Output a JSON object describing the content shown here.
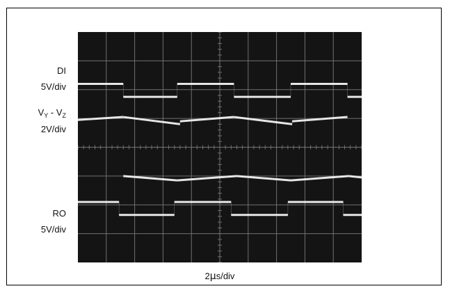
{
  "chart_data": {
    "type": "line",
    "title": "",
    "background_color": "#141414",
    "grid_color": "#707070",
    "trace_color": "#f2f2f2",
    "grid": true,
    "divisions": {
      "x": 10,
      "y": 8
    },
    "xlabel": "2μs/div",
    "xlabel_parts": {
      "value": "2",
      "mu": "μ",
      "unit": "s/div"
    },
    "channels": [
      {
        "id": "di",
        "name": "DI",
        "scale": "5V/div",
        "series": [
          {
            "x": 0.0,
            "y": 6.2
          },
          {
            "x": 1.6,
            "y": 6.2
          },
          {
            "x": 1.6,
            "y": 5.75
          },
          {
            "x": 3.5,
            "y": 5.75
          },
          {
            "x": 3.5,
            "y": 6.2
          },
          {
            "x": 5.5,
            "y": 6.2
          },
          {
            "x": 5.5,
            "y": 5.75
          },
          {
            "x": 7.5,
            "y": 5.75
          },
          {
            "x": 7.5,
            "y": 6.2
          },
          {
            "x": 9.5,
            "y": 6.2
          },
          {
            "x": 9.5,
            "y": 5.75
          },
          {
            "x": 10.0,
            "y": 5.75
          }
        ]
      },
      {
        "id": "vyz",
        "name_main": "V",
        "name_sub1": "Y",
        "name_mid": " - V",
        "name_sub2": "Z",
        "scale": "2V/div",
        "series": [
          {
            "x": 0.0,
            "y": 4.95
          },
          {
            "x": 1.6,
            "y": 5.05
          },
          {
            "x": 3.6,
            "y": 4.8
          },
          {
            "x": 3.6,
            "y": 4.9
          },
          {
            "x": 5.5,
            "y": 5.05
          },
          {
            "x": 7.55,
            "y": 4.8
          },
          {
            "x": 7.55,
            "y": 4.9
          },
          {
            "x": 9.5,
            "y": 5.05
          }
        ]
      },
      {
        "id": "neg",
        "name": "",
        "scale": "",
        "series": [
          {
            "x": 1.6,
            "y": 3.0
          },
          {
            "x": 3.5,
            "y": 2.85
          },
          {
            "x": 5.6,
            "y": 3.0
          },
          {
            "x": 7.5,
            "y": 2.85
          },
          {
            "x": 9.55,
            "y": 3.0
          },
          {
            "x": 10.0,
            "y": 2.95
          }
        ]
      },
      {
        "id": "ro",
        "name": "RO",
        "scale": "5V/div",
        "series": [
          {
            "x": 0.0,
            "y": 2.1
          },
          {
            "x": 1.45,
            "y": 2.1
          },
          {
            "x": 1.45,
            "y": 1.65
          },
          {
            "x": 3.4,
            "y": 1.65
          },
          {
            "x": 3.4,
            "y": 2.1
          },
          {
            "x": 5.4,
            "y": 2.1
          },
          {
            "x": 5.4,
            "y": 1.65
          },
          {
            "x": 7.4,
            "y": 1.65
          },
          {
            "x": 7.4,
            "y": 2.1
          },
          {
            "x": 9.35,
            "y": 2.1
          },
          {
            "x": 9.35,
            "y": 1.65
          },
          {
            "x": 10.0,
            "y": 1.65
          }
        ]
      }
    ]
  }
}
